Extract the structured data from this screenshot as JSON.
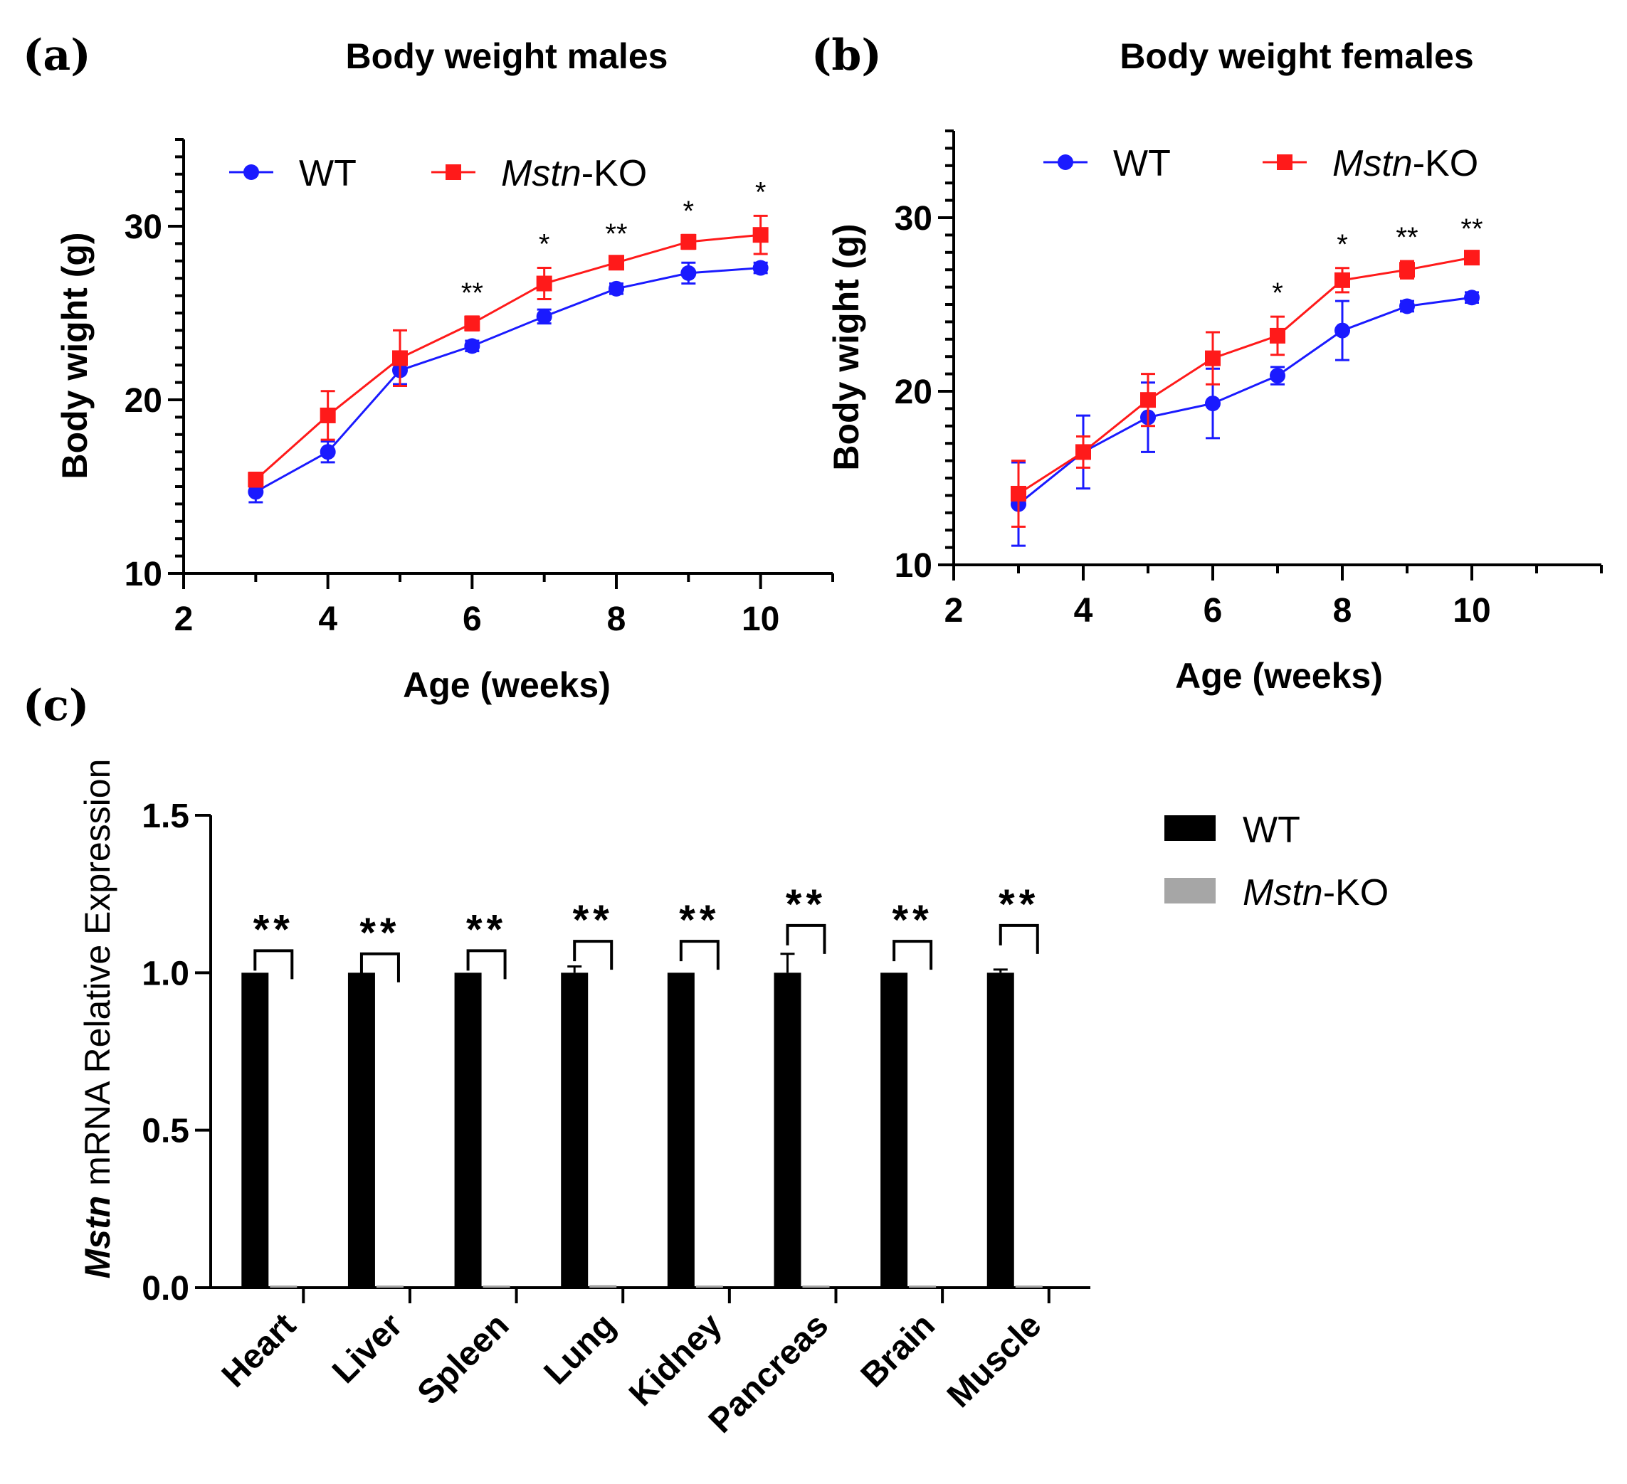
{
  "panels": {
    "a": {
      "letter": "(a)"
    },
    "b": {
      "letter": "(b)"
    },
    "c": {
      "letter": "(c)"
    }
  },
  "colors": {
    "wt_line": "#1a1aff",
    "ko_line": "#ff1a1a",
    "wt_bar": "#000000",
    "ko_bar": "#a6a6a6"
  },
  "chart_data": [
    {
      "type": "line",
      "title": "Body weight males",
      "xlabel": "Age (weeks)",
      "ylabel": "Body wight (g)",
      "xlim": [
        2,
        11
      ],
      "ylim": [
        10,
        35
      ],
      "xticks": [
        2,
        4,
        6,
        8,
        10
      ],
      "yticks": [
        10,
        20,
        30
      ],
      "legend": "top",
      "x": [
        3,
        4,
        5,
        6,
        7,
        8,
        9,
        10
      ],
      "series": [
        {
          "name": "WT",
          "name_italic": "",
          "name_suffix": "WT",
          "color": "#1a1aff",
          "marker": "circle",
          "values": [
            14.7,
            17.0,
            21.7,
            23.1,
            24.8,
            26.4,
            27.3,
            27.6
          ],
          "errors": [
            0.6,
            0.6,
            0.8,
            0.3,
            0.4,
            0.3,
            0.6,
            0.3
          ]
        },
        {
          "name": "Mstn-KO",
          "name_italic": "Mstn",
          "name_suffix": "-KO",
          "color": "#ff1a1a",
          "marker": "square",
          "values": [
            15.4,
            19.1,
            22.4,
            24.4,
            26.7,
            27.9,
            29.1,
            29.5
          ],
          "errors": [
            0.4,
            1.4,
            1.6,
            0.4,
            0.9,
            0.3,
            0.4,
            1.1
          ]
        }
      ],
      "significance": [
        {
          "x": 6,
          "label": "**"
        },
        {
          "x": 7,
          "label": "*"
        },
        {
          "x": 8,
          "label": "**"
        },
        {
          "x": 9,
          "label": "*"
        },
        {
          "x": 10,
          "label": "*"
        }
      ]
    },
    {
      "type": "line",
      "title": "Body weight females",
      "xlabel": "Age (weeks)",
      "ylabel": "Body wight (g)",
      "xlim": [
        2,
        12
      ],
      "ylim": [
        10,
        35
      ],
      "xticks": [
        2,
        4,
        6,
        8,
        10
      ],
      "yticks": [
        10,
        20,
        30
      ],
      "legend": "top",
      "x": [
        3,
        4,
        5,
        6,
        7,
        8,
        9,
        10
      ],
      "series": [
        {
          "name": "WT",
          "name_italic": "",
          "name_suffix": "WT",
          "color": "#1a1aff",
          "marker": "circle",
          "values": [
            13.5,
            16.5,
            18.5,
            19.3,
            20.9,
            23.5,
            24.9,
            25.4
          ],
          "errors": [
            2.4,
            2.1,
            2.0,
            2.0,
            0.5,
            1.7,
            0.3,
            0.3
          ]
        },
        {
          "name": "Mstn-KO",
          "name_italic": "Mstn",
          "name_suffix": "-KO",
          "color": "#ff1a1a",
          "marker": "square",
          "values": [
            14.1,
            16.5,
            19.5,
            21.9,
            23.2,
            26.4,
            27.0,
            27.7
          ],
          "errors": [
            1.9,
            0.9,
            1.5,
            1.5,
            1.1,
            0.7,
            0.5,
            0.3
          ]
        }
      ],
      "significance": [
        {
          "x": 7,
          "label": "*"
        },
        {
          "x": 8,
          "label": "*"
        },
        {
          "x": 9,
          "label": "**"
        },
        {
          "x": 10,
          "label": "**"
        }
      ]
    },
    {
      "type": "bar",
      "title": "",
      "xlabel": "",
      "ylabel_italic": "Mstn",
      "ylabel_rest": " mRNA Relative Expression",
      "ylim": [
        0,
        1.5
      ],
      "yticks": [
        "0.0",
        "0.5",
        "1.0",
        "1.5"
      ],
      "legend": "right",
      "categories": [
        "Heart",
        "Liver",
        "Spleen",
        "Lung",
        "Kidney",
        "Pancreas",
        "Brain",
        "Muscle"
      ],
      "series": [
        {
          "name": "WT",
          "name_italic": "",
          "name_suffix": "WT",
          "color": "#000000",
          "values": [
            1.0,
            1.0,
            1.0,
            1.0,
            1.0,
            1.0,
            1.0,
            1.0
          ],
          "errors": [
            0.0,
            0.0,
            0.0,
            0.02,
            0.0,
            0.06,
            0.0,
            0.01
          ]
        },
        {
          "name": "Mstn-KO",
          "name_italic": "Mstn",
          "name_suffix": "-KO",
          "color": "#a6a6a6",
          "values": [
            0.005,
            0.003,
            0.003,
            0.008,
            0.003,
            0.003,
            0.005,
            0.003
          ],
          "errors": [
            0,
            0,
            0,
            0,
            0,
            0,
            0,
            0
          ]
        }
      ],
      "significance": [
        "**",
        "**",
        "**",
        "**",
        "**",
        "**",
        "**",
        "**"
      ],
      "bracket_heights": [
        1.07,
        1.06,
        1.07,
        1.1,
        1.1,
        1.15,
        1.1,
        1.15
      ]
    }
  ]
}
